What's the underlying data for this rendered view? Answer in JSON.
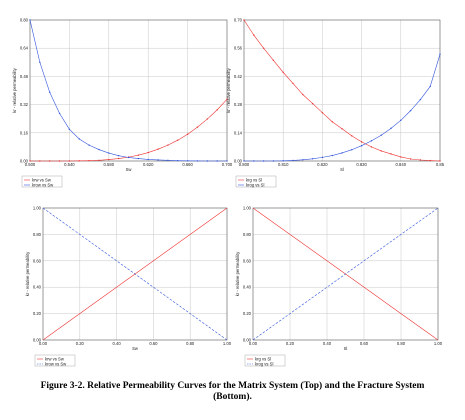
{
  "caption": {
    "line1": "Figure 3-2. Relative Permeability Curves for the Matrix System (Top) and the Fracture System",
    "line2": "(Bottom)."
  },
  "colors": {
    "red": "#ee3333",
    "blue": "#3355dd",
    "grid": "#c8c8c8",
    "axis": "#555555"
  },
  "chart_data": [
    {
      "type": "line",
      "xlabel": "Sw",
      "ylabel": "kr - relative permeability",
      "xlim": [
        0.5,
        0.7
      ],
      "ylim": [
        0,
        0.8
      ],
      "xticks": [
        "0.500",
        "0.540",
        "0.580",
        "0.620",
        "0.660",
        "0.700"
      ],
      "yticks": [
        "0.00",
        "0.16",
        "0.32",
        "0.48",
        "0.64",
        "0.80"
      ],
      "grid": true,
      "markers": true,
      "series": [
        {
          "name": "krw vs Sw",
          "color": "red",
          "x": [
            0.5,
            0.51,
            0.52,
            0.53,
            0.54,
            0.55,
            0.56,
            0.57,
            0.58,
            0.59,
            0.6,
            0.61,
            0.62,
            0.63,
            0.64,
            0.65,
            0.66,
            0.67,
            0.68,
            0.69,
            0.7
          ],
          "y": [
            0,
            0,
            0,
            0,
            0,
            0.001,
            0.002,
            0.004,
            0.008,
            0.014,
            0.022,
            0.033,
            0.048,
            0.067,
            0.09,
            0.118,
            0.152,
            0.192,
            0.238,
            0.29,
            0.35
          ]
        },
        {
          "name": "krow vs Sw",
          "color": "blue",
          "x": [
            0.5,
            0.51,
            0.52,
            0.53,
            0.54,
            0.55,
            0.56,
            0.57,
            0.58,
            0.59,
            0.6,
            0.61,
            0.62,
            0.63,
            0.64,
            0.65,
            0.66,
            0.67,
            0.68,
            0.69,
            0.7
          ],
          "y": [
            0.8,
            0.56,
            0.39,
            0.27,
            0.18,
            0.125,
            0.09,
            0.065,
            0.045,
            0.03,
            0.02,
            0.014,
            0.009,
            0.006,
            0.004,
            0.002,
            0.001,
            0.0005,
            0,
            0,
            0
          ]
        }
      ],
      "legend": "bottom-left"
    },
    {
      "type": "line",
      "xlabel": "Sl",
      "ylabel": "kr - relative permeability",
      "xlim": [
        0.8,
        0.85
      ],
      "ylim": [
        0,
        0.7
      ],
      "xticks": [
        "0.800",
        "0.810",
        "0.820",
        "0.830",
        "0.840",
        "0.85"
      ],
      "yticks": [
        "0.00",
        "0.14",
        "0.28",
        "0.42",
        "0.56",
        "0.70"
      ],
      "grid": true,
      "markers": true,
      "series": [
        {
          "name": "krg vs Sl",
          "color": "red",
          "x": [
            0.8,
            0.8025,
            0.805,
            0.8075,
            0.81,
            0.8125,
            0.815,
            0.8175,
            0.82,
            0.8225,
            0.825,
            0.8275,
            0.83,
            0.8325,
            0.835,
            0.8375,
            0.84,
            0.8425,
            0.845,
            0.8475,
            0.85
          ],
          "y": [
            0.7,
            0.625,
            0.56,
            0.5,
            0.44,
            0.385,
            0.33,
            0.285,
            0.24,
            0.195,
            0.16,
            0.125,
            0.095,
            0.07,
            0.05,
            0.035,
            0.02,
            0.01,
            0.005,
            0.002,
            0
          ]
        },
        {
          "name": "krog vs Sl",
          "color": "blue",
          "x": [
            0.8,
            0.8025,
            0.805,
            0.8075,
            0.81,
            0.8125,
            0.815,
            0.8175,
            0.82,
            0.8225,
            0.825,
            0.8275,
            0.83,
            0.8325,
            0.835,
            0.8375,
            0.84,
            0.8425,
            0.845,
            0.8475,
            0.85
          ],
          "y": [
            0,
            0,
            0,
            0,
            0.001,
            0.003,
            0.006,
            0.011,
            0.018,
            0.027,
            0.04,
            0.056,
            0.076,
            0.1,
            0.128,
            0.162,
            0.202,
            0.25,
            0.305,
            0.37,
            0.53
          ]
        }
      ],
      "legend": "bottom-left"
    },
    {
      "type": "line",
      "xlabel": "Sw",
      "ylabel": "kr - relative permeability",
      "xlim": [
        0,
        1
      ],
      "ylim": [
        0,
        1
      ],
      "xticks": [
        "0.00",
        "0.20",
        "0.40",
        "0.60",
        "0.80",
        "1.00"
      ],
      "yticks": [
        "0.00",
        "0.20",
        "0.40",
        "0.60",
        "0.80",
        "1.00"
      ],
      "grid": true,
      "markers": false,
      "series": [
        {
          "name": "krw vs Sw",
          "color": "red",
          "dash": false,
          "x": [
            0,
            1
          ],
          "y": [
            0,
            1
          ]
        },
        {
          "name": "krow vs Sw",
          "color": "blue",
          "dash": true,
          "x": [
            0,
            1
          ],
          "y": [
            1,
            0
          ]
        }
      ],
      "legend": "bottom-left"
    },
    {
      "type": "line",
      "xlabel": "Sl",
      "ylabel": "kr - relative permeability",
      "xlim": [
        0,
        1
      ],
      "ylim": [
        0,
        1
      ],
      "xticks": [
        "0.00",
        "0.20",
        "0.40",
        "0.60",
        "0.80",
        "1.00"
      ],
      "yticks": [
        "0.00",
        "0.20",
        "0.40",
        "0.60",
        "0.80",
        "1.00"
      ],
      "grid": true,
      "markers": false,
      "series": [
        {
          "name": "krg vs Sl",
          "color": "red",
          "dash": false,
          "x": [
            0,
            1
          ],
          "y": [
            1,
            0
          ]
        },
        {
          "name": "krog vs Sl",
          "color": "blue",
          "dash": true,
          "x": [
            0,
            1
          ],
          "y": [
            0,
            1
          ]
        }
      ],
      "legend": "bottom-left"
    }
  ]
}
